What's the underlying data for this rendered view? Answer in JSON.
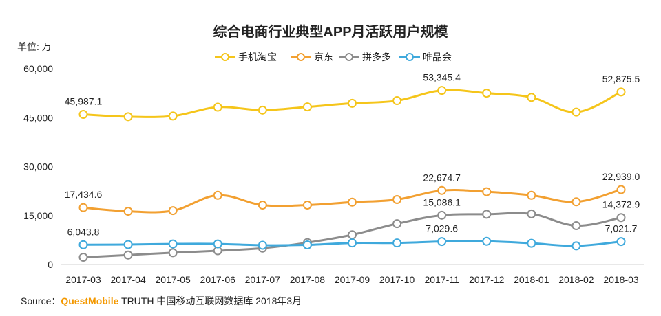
{
  "header": {
    "title": "综合电商行业典型APP月活跃用户规模",
    "unit": "单位: 万"
  },
  "source": {
    "prefix": "Source：",
    "brand": "QuestMobile",
    "suffix": " TRUTH 中国移动互联网数据库 2018年3月"
  },
  "chart_data": {
    "type": "line",
    "title": "综合电商行业典型APP月活跃用户规模",
    "ylabel": "单位: 万",
    "ylim": [
      0,
      60000
    ],
    "yticks": [
      0,
      15000,
      30000,
      45000,
      60000
    ],
    "ytick_labels": [
      "0",
      "15,000",
      "30,000",
      "45,000",
      "60,000"
    ],
    "legend_position": "top-center",
    "categories": [
      "2017-03",
      "2017-04",
      "2017-05",
      "2017-06",
      "2017-07",
      "2017-08",
      "2017-09",
      "2017-10",
      "2017-11",
      "2017-12",
      "2018-01",
      "2018-02",
      "2018-03"
    ],
    "series": [
      {
        "name": "手机淘宝",
        "color": "#f5c51a",
        "values": [
          45987.1,
          45300,
          45500,
          48200,
          47300,
          48300,
          49400,
          50200,
          53345.4,
          52500,
          51200,
          46700,
          52875.5
        ],
        "labels": {
          "0": "45,987.1",
          "8": "53,345.4",
          "12": "52,875.5"
        }
      },
      {
        "name": "京东",
        "color": "#f2a031",
        "values": [
          17434.6,
          16300,
          16500,
          21200,
          18200,
          18200,
          19100,
          19900,
          22674.7,
          22300,
          21200,
          19200,
          22939.0
        ],
        "labels": {
          "0": "17,434.6",
          "8": "22,674.7",
          "12": "22,939.0"
        }
      },
      {
        "name": "拼多多",
        "color": "#8c8c8c",
        "values": [
          2200,
          2900,
          3600,
          4200,
          5000,
          6700,
          9100,
          12500,
          15086.1,
          15400,
          15500,
          11900,
          14372.9
        ],
        "labels": {
          "8": "15,086.1",
          "12": "14,372.9"
        }
      },
      {
        "name": "唯品会",
        "color": "#3fa9dc",
        "values": [
          6043.8,
          6100,
          6300,
          6300,
          5900,
          6000,
          6600,
          6600,
          7029.6,
          7100,
          6500,
          5700,
          7021.7
        ],
        "labels": {
          "0": "6,043.8",
          "8": "7,029.6",
          "12": "7,021.7"
        }
      }
    ]
  }
}
